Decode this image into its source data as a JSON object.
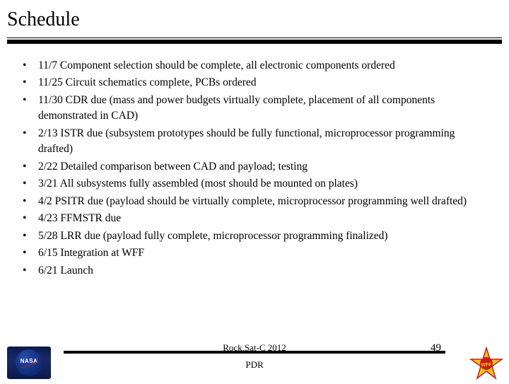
{
  "title": "Schedule",
  "bullets": [
    "11/7 Component selection should be complete, all electronic components ordered",
    "11/25 Circuit schematics complete, PCBs ordered",
    "11/30 CDR due (mass and power budgets virtually complete, placement of all components demonstrated in CAD)",
    "2/13 ISTR due (subsystem prototypes should be fully functional, microprocessor programming drafted)",
    "2/22 Detailed comparison between CAD and payload; testing",
    "3/21 All subsystems fully assembled (most should be mounted on plates)",
    "4/2 PSITR due (payload should be virtually complete, microprocessor programming well drafted)",
    "4/23 FFMSTR due",
    "5/28 LRR due (payload fully complete, microprocessor programming finalized)",
    "6/15 Integration at WFF",
    "6/21 Launch"
  ],
  "footer_line1": "Rock.Sat-C 2012",
  "footer_line2": "PDR",
  "page_number": "49",
  "logo_right_label": "WFF",
  "colors": {
    "text": "#000000",
    "background": "#ffffff",
    "rule": "#000000",
    "nasa_blue": "#0a2a78",
    "nasa_swoosh": "#d02030",
    "wff_yellow": "#f5c518",
    "wff_red": "#c81e1e"
  }
}
